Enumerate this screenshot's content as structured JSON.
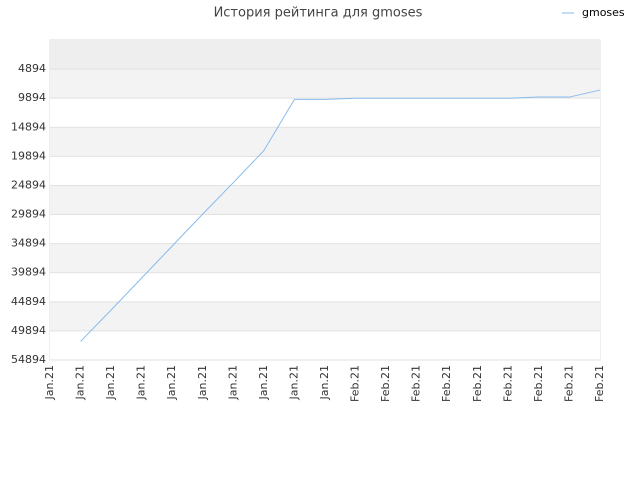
{
  "chart_data": {
    "type": "line",
    "title": "История рейтинга для gmoses",
    "categories": [
      "Jan.21",
      "Jan.21",
      "Jan.21",
      "Jan.21",
      "Jan.21",
      "Jan.21",
      "Jan.21",
      "Jan.21",
      "Jan.21",
      "Jan.21",
      "Feb.21",
      "Feb.21",
      "Feb.21",
      "Feb.21",
      "Feb.21",
      "Feb.21",
      "Feb.21",
      "Feb.21",
      "Feb.21"
    ],
    "series": [
      {
        "name": "gmoses",
        "color": "#88bbee",
        "values": [
          null,
          51700,
          46300,
          40800,
          35300,
          29800,
          24400,
          18900,
          10100,
          10100,
          9900,
          9900,
          9900,
          9900,
          9900,
          9900,
          9700,
          9700,
          8500
        ]
      }
    ],
    "ylim": [
      -106,
      54894
    ],
    "y_inverted": true,
    "yticks": [
      4894,
      9894,
      14894,
      19894,
      24894,
      29894,
      34894,
      39894,
      44894,
      49894,
      54894
    ],
    "legend": "top-right",
    "grid": true
  }
}
